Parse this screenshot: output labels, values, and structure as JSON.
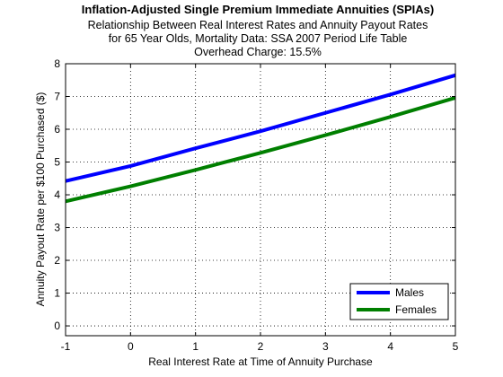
{
  "chart_data": {
    "type": "line",
    "title": "Inflation-Adjusted Single Premium Immediate Annuities (SPIAs)",
    "subtitle_lines": [
      "Relationship Between Real Interest Rates and Annuity Payout Rates",
      "for 65 Year Olds, Mortality Data: SSA 2007 Period Life Table",
      "Overhead Charge: 15.5%"
    ],
    "xlabel": "Real Interest Rate at Time of Annuity Purchase",
    "ylabel": "Annuity Payout Rate per $100 Purchased ($)",
    "xlim": [
      -1,
      5
    ],
    "ylim": [
      -0.3,
      8
    ],
    "xticks": [
      -1,
      0,
      1,
      2,
      3,
      4,
      5
    ],
    "yticks": [
      0,
      1,
      2,
      3,
      4,
      5,
      6,
      7,
      8
    ],
    "grid": true,
    "legend_position": "bottom-right",
    "series": [
      {
        "name": "Males",
        "color": "#0000ff",
        "x": [
          -1,
          0,
          1,
          2,
          3,
          4,
          5
        ],
        "y": [
          4.42,
          4.88,
          5.42,
          5.94,
          6.5,
          7.06,
          7.65
        ]
      },
      {
        "name": "Females",
        "color": "#007f00",
        "x": [
          -1,
          0,
          1,
          2,
          3,
          4,
          5
        ],
        "y": [
          3.8,
          4.26,
          4.76,
          5.28,
          5.82,
          6.38,
          6.96
        ]
      }
    ]
  }
}
